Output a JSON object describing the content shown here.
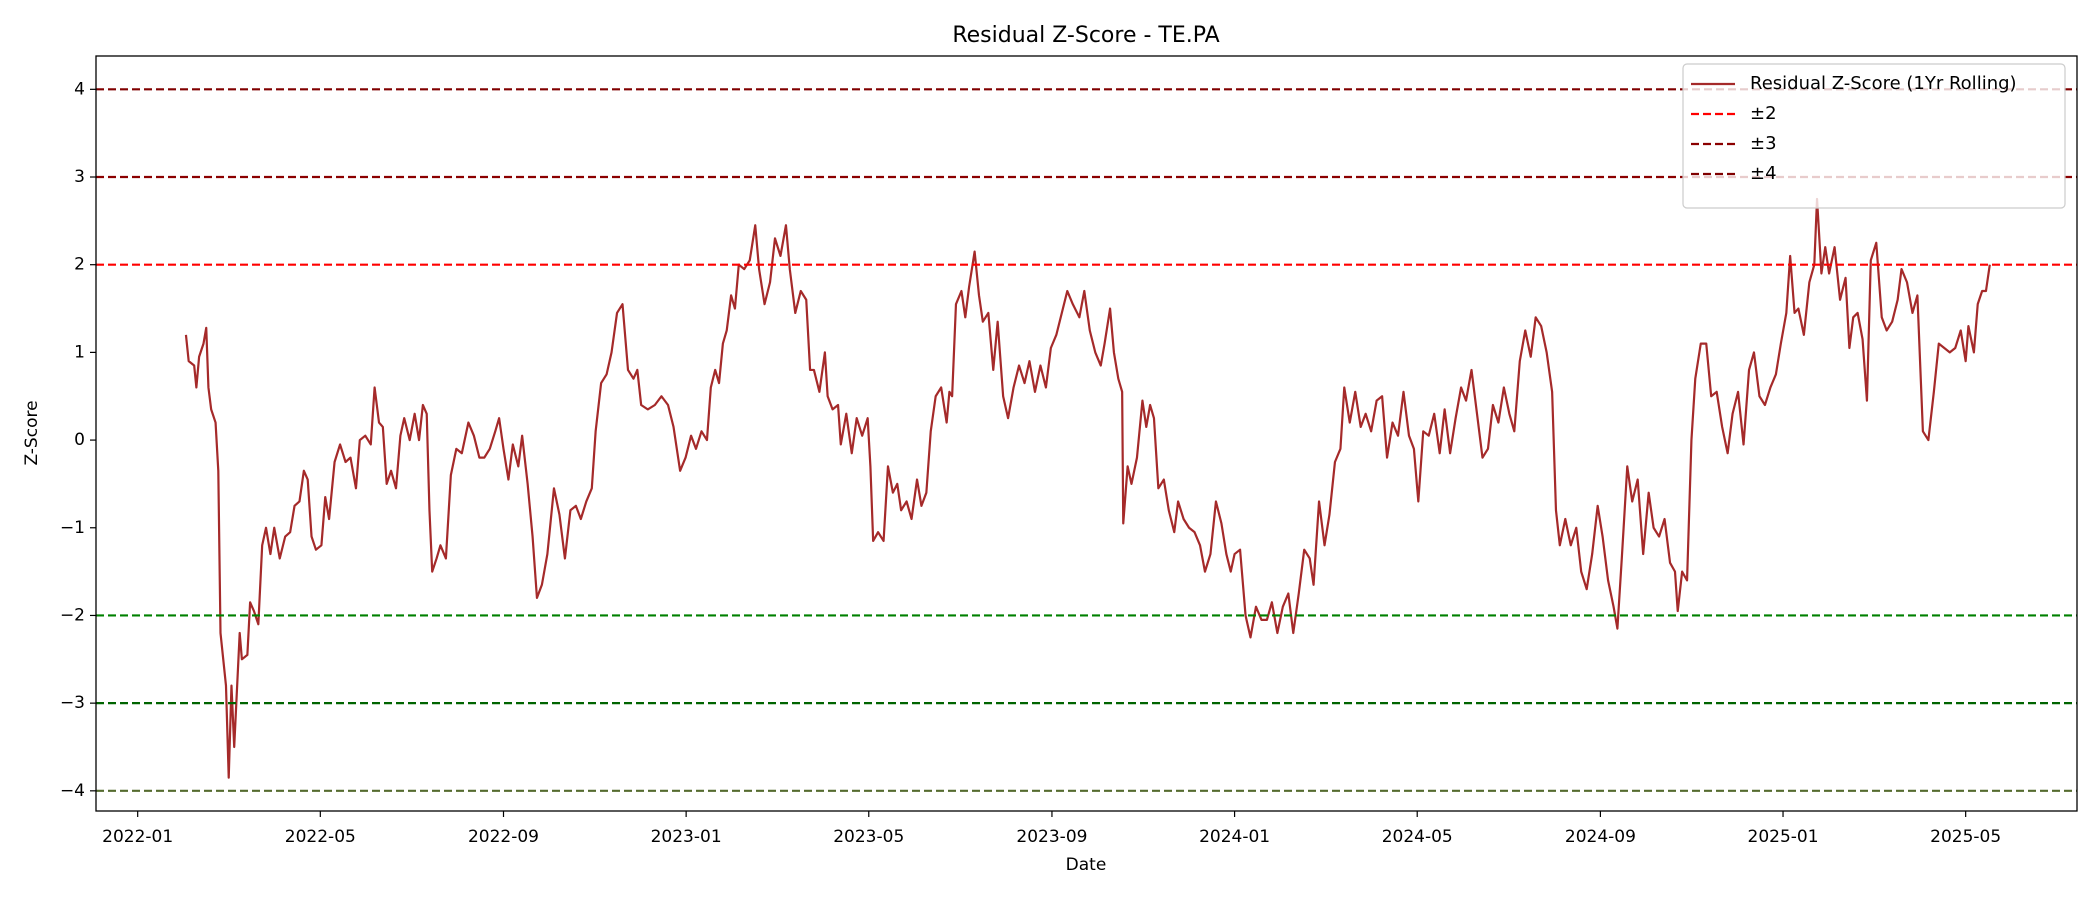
{
  "chart_data": {
    "type": "line",
    "title": "Residual Z-Score - TE.PA",
    "xlabel": "Date",
    "ylabel": "Z-Score",
    "xlim": [
      2021.924,
      2025.536
    ],
    "ylim": [
      -4.23,
      4.38
    ],
    "xticks": [
      {
        "value": 2022.0,
        "label": "2022-01"
      },
      {
        "value": 2022.333,
        "label": "2022-05"
      },
      {
        "value": 2022.667,
        "label": "2022-09"
      },
      {
        "value": 2023.0,
        "label": "2023-01"
      },
      {
        "value": 2023.333,
        "label": "2023-05"
      },
      {
        "value": 2023.667,
        "label": "2023-09"
      },
      {
        "value": 2024.0,
        "label": "2024-01"
      },
      {
        "value": 2024.333,
        "label": "2024-05"
      },
      {
        "value": 2024.667,
        "label": "2024-09"
      },
      {
        "value": 2025.0,
        "label": "2025-01"
      },
      {
        "value": 2025.333,
        "label": "2025-05"
      }
    ],
    "yticks": [
      {
        "value": -4,
        "label": "−4"
      },
      {
        "value": -3,
        "label": "−3"
      },
      {
        "value": -2,
        "label": "−2"
      },
      {
        "value": -1,
        "label": "−1"
      },
      0,
      1,
      2,
      3,
      4
    ],
    "legend": "upper right",
    "series": [
      {
        "name": "Residual Z-Score (1Yr Rolling)",
        "color": "#a52a2a",
        "x": [
          2022.088,
          2022.093,
          2022.103,
          2022.107,
          2022.112,
          2022.12,
          2022.125,
          2022.129,
          2022.134,
          2022.142,
          2022.147,
          2022.151,
          2022.161,
          2022.166,
          2022.171,
          2022.176,
          2022.186,
          2022.19,
          2022.2,
          2022.205,
          2022.212,
          2022.22,
          2022.227,
          2022.234,
          2022.242,
          2022.249,
          2022.259,
          2022.269,
          2022.278,
          2022.286,
          2022.295,
          2022.303,
          2022.31,
          2022.317,
          2022.325,
          2022.335,
          2022.342,
          2022.349,
          2022.359,
          2022.369,
          2022.379,
          2022.388,
          2022.398,
          2022.405,
          2022.415,
          2022.425,
          2022.432,
          2022.44,
          2022.447,
          2022.454,
          2022.462,
          2022.471,
          2022.479,
          2022.486,
          2022.496,
          2022.505,
          2022.513,
          2022.52,
          2022.527,
          2022.532,
          2022.537,
          2022.545,
          2022.552,
          2022.562,
          2022.571,
          2022.581,
          2022.591,
          2022.603,
          2022.613,
          2022.623,
          2022.632,
          2022.642,
          2022.652,
          2022.659,
          2022.667,
          2022.676,
          2022.684,
          2022.694,
          2022.701,
          2022.711,
          2022.72,
          2022.728,
          2022.737,
          2022.747,
          2022.759,
          2022.769,
          2022.779,
          2022.789,
          2022.799,
          2022.808,
          2022.818,
          2022.828,
          2022.835,
          2022.845,
          2022.855,
          2022.864,
          2022.874,
          2022.884,
          2022.894,
          2022.904,
          2022.911,
          2022.918,
          2022.93,
          2022.943,
          2022.955,
          2022.967,
          2022.977,
          2022.989,
          2022.999,
          2023.009,
          2023.018,
          2023.028,
          2023.038,
          2023.045,
          2023.053,
          2023.06,
          2023.067,
          2023.074,
          2023.082,
          2023.089,
          2023.096,
          2023.106,
          2023.116,
          2023.126,
          2023.133,
          2023.143,
          2023.153,
          2023.162,
          2023.172,
          2023.182,
          2023.189,
          2023.199,
          2023.209,
          2023.219,
          2023.226,
          2023.233,
          2023.243,
          2023.253,
          2023.258,
          2023.267,
          2023.277,
          2023.282,
          2023.292,
          2023.302,
          2023.311,
          2023.321,
          2023.331,
          2023.336,
          2023.341,
          2023.35,
          2023.36,
          2023.368,
          2023.377,
          2023.385,
          2023.392,
          2023.402,
          2023.411,
          2023.421,
          2023.429,
          2023.438,
          2023.446,
          2023.455,
          2023.465,
          2023.475,
          2023.48,
          2023.485,
          2023.492,
          2023.502,
          2023.509,
          2023.516,
          2023.526,
          2023.534,
          2023.541,
          2023.551,
          2023.56,
          2023.568,
          2023.578,
          2023.587,
          2023.597,
          2023.607,
          2023.617,
          2023.626,
          2023.636,
          2023.646,
          2023.656,
          2023.665,
          2023.675,
          2023.687,
          2023.695,
          2023.705,
          2023.717,
          2023.726,
          2023.736,
          2023.746,
          2023.756,
          2023.763,
          2023.773,
          2023.78,
          2023.788,
          2023.795,
          2023.797,
          2023.805,
          2023.812,
          2023.822,
          2023.832,
          2023.839,
          2023.846,
          2023.853,
          2023.861,
          2023.871,
          2023.88,
          2023.89,
          2023.897,
          2023.907,
          2023.917,
          2023.927,
          2023.937,
          2023.946,
          2023.956,
          2023.966,
          2023.976,
          2023.985,
          2023.993,
          2024.0,
          2024.01,
          2024.02,
          2024.029,
          2024.039,
          2024.049,
          2024.059,
          2024.068,
          2024.078,
          2024.088,
          2024.098,
          2024.107,
          2024.117,
          2024.127,
          2024.137,
          2024.144,
          2024.154,
          2024.164,
          2024.173,
          2024.183,
          2024.193,
          2024.2,
          2024.21,
          2024.22,
          2024.23,
          2024.239,
          2024.249,
          2024.259,
          2024.269,
          2024.278,
          2024.288,
          2024.298,
          2024.308,
          2024.318,
          2024.327,
          2024.335,
          2024.344,
          2024.354,
          2024.364,
          2024.374,
          2024.383,
          2024.393,
          2024.403,
          2024.413,
          2024.422,
          2024.432,
          2024.442,
          2024.452,
          2024.462,
          2024.471,
          2024.481,
          2024.491,
          2024.501,
          2024.51,
          2024.52,
          2024.53,
          2024.54,
          2024.549,
          2024.559,
          2024.569,
          2024.579,
          2024.586,
          2024.593,
          2024.603,
          2024.613,
          2024.623,
          2024.632,
          2024.642,
          2024.652,
          2024.662,
          2024.671,
          2024.681,
          2024.691,
          2024.698,
          2024.706,
          2024.716,
          2024.725,
          2024.735,
          2024.745,
          2024.755,
          2024.764,
          2024.774,
          2024.784,
          2024.794,
          2024.803,
          2024.808,
          2024.816,
          2024.825,
          2024.833,
          2024.84,
          2024.85,
          2024.86,
          2024.869,
          2024.879,
          2024.889,
          2024.899,
          2024.908,
          2024.918,
          2024.928,
          2024.938,
          2024.947,
          2024.957,
          2024.967,
          2024.977,
          2024.987,
          2024.996,
          2025.006,
          2025.013,
          2025.021,
          2025.028,
          2025.038,
          2025.048,
          2025.057,
          2025.062,
          2025.07,
          2025.077,
          2025.084,
          2025.094,
          2025.104,
          2025.114,
          2025.121,
          2025.128,
          2025.136,
          2025.145,
          2025.153,
          2025.16,
          2025.17,
          2025.18,
          2025.189,
          2025.199,
          2025.209,
          2025.216,
          2025.226,
          2025.236,
          2025.245,
          2025.255,
          2025.265,
          2025.275,
          2025.284,
          2025.294,
          2025.304,
          2025.314,
          2025.324,
          2025.333,
          2025.338,
          2025.348,
          2025.355,
          2025.363,
          2025.37,
          2025.377
        ],
        "values": [
          1.2,
          0.9,
          0.85,
          0.6,
          0.95,
          1.1,
          1.28,
          0.6,
          0.35,
          0.2,
          -0.35,
          -2.2,
          -2.8,
          -3.85,
          -2.8,
          -3.5,
          -2.2,
          -2.5,
          -2.45,
          -1.85,
          -1.95,
          -2.1,
          -1.2,
          -1.0,
          -1.3,
          -1.0,
          -1.35,
          -1.1,
          -1.05,
          -0.75,
          -0.7,
          -0.35,
          -0.45,
          -1.1,
          -1.25,
          -1.2,
          -0.65,
          -0.9,
          -0.25,
          -0.05,
          -0.25,
          -0.2,
          -0.55,
          0.0,
          0.05,
          -0.05,
          0.6,
          0.2,
          0.15,
          -0.5,
          -0.35,
          -0.55,
          0.05,
          0.25,
          0.0,
          0.3,
          0.0,
          0.4,
          0.3,
          -0.8,
          -1.5,
          -1.35,
          -1.2,
          -1.35,
          -0.4,
          -0.1,
          -0.15,
          0.2,
          0.05,
          -0.2,
          -0.2,
          -0.1,
          0.1,
          0.25,
          -0.1,
          -0.45,
          -0.05,
          -0.3,
          0.05,
          -0.5,
          -1.1,
          -1.8,
          -1.65,
          -1.3,
          -0.55,
          -0.85,
          -1.35,
          -0.8,
          -0.75,
          -0.9,
          -0.7,
          -0.55,
          0.1,
          0.65,
          0.75,
          1.0,
          1.45,
          1.55,
          0.8,
          0.7,
          0.8,
          0.4,
          0.35,
          0.4,
          0.5,
          0.4,
          0.15,
          -0.35,
          -0.2,
          0.05,
          -0.1,
          0.1,
          0.0,
          0.6,
          0.8,
          0.65,
          1.1,
          1.25,
          1.65,
          1.5,
          2.0,
          1.95,
          2.05,
          2.45,
          1.95,
          1.55,
          1.8,
          2.3,
          2.1,
          2.45,
          1.95,
          1.45,
          1.7,
          1.6,
          0.8,
          0.8,
          0.55,
          1.0,
          0.5,
          0.35,
          0.4,
          -0.05,
          0.3,
          -0.15,
          0.25,
          0.05,
          0.25,
          -0.3,
          -1.15,
          -1.05,
          -1.15,
          -0.3,
          -0.6,
          -0.5,
          -0.8,
          -0.7,
          -0.9,
          -0.45,
          -0.75,
          -0.6,
          0.1,
          0.5,
          0.6,
          0.2,
          0.55,
          0.5,
          1.55,
          1.7,
          1.4,
          1.75,
          2.15,
          1.65,
          1.35,
          1.45,
          0.8,
          1.35,
          0.5,
          0.25,
          0.6,
          0.85,
          0.65,
          0.9,
          0.55,
          0.85,
          0.6,
          1.05,
          1.2,
          1.5,
          1.7,
          1.55,
          1.4,
          1.7,
          1.25,
          1.0,
          0.85,
          1.1,
          1.5,
          1.0,
          0.7,
          0.55,
          -0.95,
          -0.3,
          -0.5,
          -0.2,
          0.45,
          0.15,
          0.4,
          0.25,
          -0.55,
          -0.45,
          -0.8,
          -1.05,
          -0.7,
          -0.9,
          -1.0,
          -1.05,
          -1.2,
          -1.5,
          -1.3,
          -0.7,
          -0.95,
          -1.3,
          -1.5,
          -1.3,
          -1.25,
          -2.0,
          -2.25,
          -1.9,
          -2.05,
          -2.05,
          -1.85,
          -2.2,
          -1.9,
          -1.75,
          -2.2,
          -1.75,
          -1.25,
          -1.35,
          -1.65,
          -0.7,
          -1.2,
          -0.85,
          -0.25,
          -0.1,
          0.6,
          0.2,
          0.55,
          0.15,
          0.3,
          0.1,
          0.45,
          0.5,
          -0.2,
          0.2,
          0.05,
          0.55,
          0.05,
          -0.1,
          -0.7,
          0.1,
          0.05,
          0.3,
          -0.15,
          0.35,
          -0.15,
          0.25,
          0.6,
          0.45,
          0.8,
          0.3,
          -0.2,
          -0.1,
          0.4,
          0.2,
          0.6,
          0.3,
          0.1,
          0.9,
          1.25,
          0.95,
          1.4,
          1.3,
          1.0,
          0.55,
          -0.8,
          -1.2,
          -0.9,
          -1.2,
          -1.0,
          -1.5,
          -1.7,
          -1.3,
          -0.75,
          -1.1,
          -1.6,
          -1.9,
          -2.15,
          -1.35,
          -0.3,
          -0.7,
          -0.45,
          -1.3,
          -0.6,
          -1.0,
          -1.1,
          -0.9,
          -1.4,
          -1.5,
          -1.95,
          -1.5,
          -1.6,
          0.0,
          0.7,
          1.1,
          1.1,
          0.5,
          0.55,
          0.15,
          -0.15,
          0.3,
          0.55,
          -0.05,
          0.8,
          1.0,
          0.5,
          0.4,
          0.6,
          0.75,
          1.1,
          1.45,
          2.1,
          1.45,
          1.5,
          1.2,
          1.8,
          2.0,
          2.75,
          1.9,
          2.2,
          1.9,
          2.2,
          1.6,
          1.85,
          1.05,
          1.4,
          1.45,
          1.15,
          0.45,
          2.05,
          2.25,
          1.4,
          1.25,
          1.35,
          1.6,
          1.95,
          1.8,
          1.45,
          1.65,
          0.1,
          0.0,
          0.55,
          1.1,
          1.05,
          1.0,
          1.05,
          1.25,
          0.9,
          1.3,
          1.0,
          1.55,
          1.7,
          1.7,
          2.0
        ]
      }
    ],
    "reference_lines": [
      {
        "name": "±2",
        "values": [
          2,
          -2
        ],
        "colors": [
          "#ff0000",
          "#008000"
        ]
      },
      {
        "name": "±3",
        "values": [
          3,
          -3
        ],
        "colors": [
          "#8b0000",
          "#006400"
        ]
      },
      {
        "name": "±4",
        "values": [
          4,
          -4
        ],
        "colors": [
          "#800000",
          "#556b2f"
        ]
      }
    ]
  }
}
